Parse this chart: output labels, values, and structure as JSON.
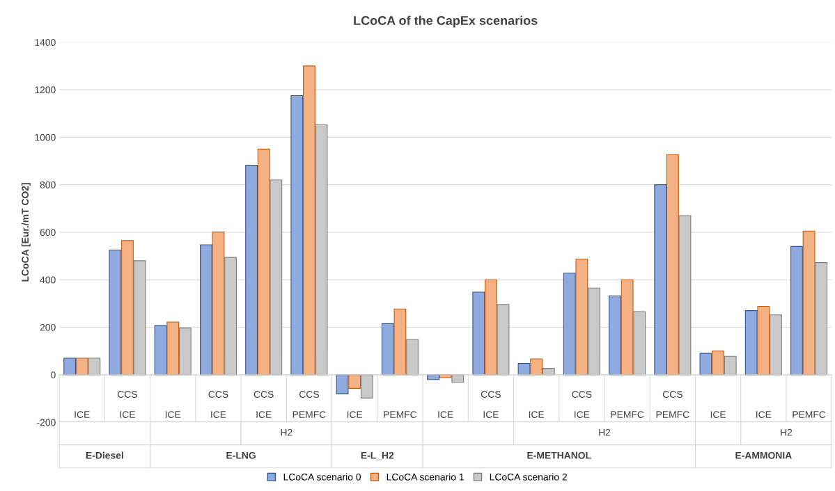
{
  "chart_data": {
    "type": "bar",
    "title": "LCoCA of the CapEx scenarios",
    "ylabel": "LCoCA [Eur./mT CO2]",
    "categories": [
      "ICE",
      "CCS\nICE",
      "ICE",
      "CCS\nICE",
      "CCS\nICE",
      "CCS\nPEMFC",
      "ICE",
      "PEMFC",
      "ICE",
      "CCS\nICE",
      "ICE",
      "CCS\nICE",
      "PEMFC",
      "CCS\nPEMFC",
      "ICE",
      "ICE",
      "PEMFC"
    ],
    "annotations": [
      "H2",
      "H2",
      "H2",
      "E-Diesel",
      "E-LNG",
      "E-L_H2",
      "E-METHANOL",
      "E-AMMONIA"
    ],
    "series": [
      {
        "name": "LCoCA scenario 0",
        "color": "#8faadc",
        "values": [
          70,
          525,
          207,
          547,
          882,
          1175,
          -80,
          215,
          -20,
          348,
          48,
          428,
          332,
          800,
          90,
          270,
          540
        ]
      },
      {
        "name": "LCoCA scenario 1",
        "color": "#f4b183",
        "values": [
          70,
          565,
          222,
          601,
          950,
          1300,
          -57,
          277,
          -12,
          400,
          67,
          487,
          400,
          927,
          100,
          288,
          605
        ]
      },
      {
        "name": "LCoCA scenario 2",
        "color": "#c9c9c9",
        "values": [
          70,
          480,
          197,
          494,
          820,
          1052,
          -98,
          148,
          -32,
          296,
          27,
          365,
          266,
          670,
          78,
          252,
          472
        ]
      }
    ],
    "ylim": [
      -200,
      1400
    ],
    "yticks": [
      -200,
      0,
      200,
      400,
      600,
      800,
      1000,
      1200,
      1400
    ],
    "grid": "y",
    "legend": "bottom"
  }
}
